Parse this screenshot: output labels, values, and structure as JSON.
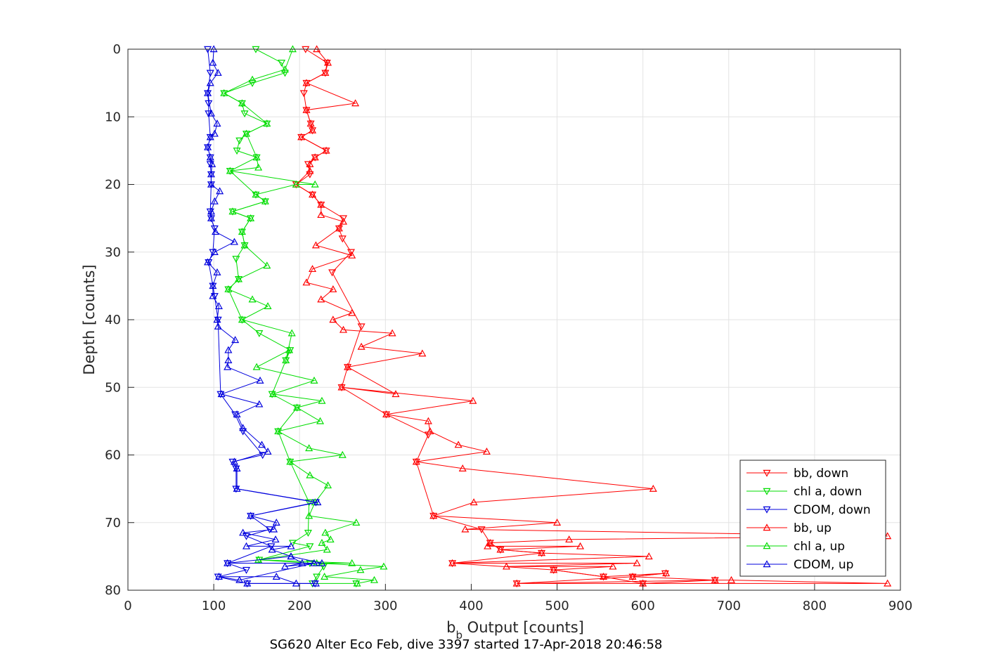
{
  "chart_data": {
    "type": "line",
    "title": "SG620 Alter Eco Feb, dive 3397 started 17-Apr-2018 20:46:58",
    "xlabel_main": "b",
    "xlabel_sub": "b",
    "xlabel_rest": " Output [counts]",
    "ylabel": "Depth [counts]",
    "xlim": [
      0,
      900
    ],
    "ylim": [
      0,
      80
    ],
    "y_reversed": true,
    "grid": true,
    "legend_position": "bottom-right",
    "xticks": [
      0,
      100,
      200,
      300,
      400,
      500,
      600,
      700,
      800,
      900
    ],
    "yticks": [
      0,
      10,
      20,
      30,
      40,
      50,
      60,
      70,
      80
    ],
    "series": [
      {
        "name": "bb, down",
        "color": "#ff0000",
        "marker": "triangle-down",
        "points": [
          [
            207,
            0
          ],
          [
            232,
            2
          ],
          [
            230,
            3.5
          ],
          [
            208,
            5
          ],
          [
            205,
            6.5
          ],
          [
            208,
            9
          ],
          [
            213,
            11
          ],
          [
            215,
            12
          ],
          [
            202,
            13
          ],
          [
            231,
            15
          ],
          [
            218,
            16
          ],
          [
            210,
            17
          ],
          [
            212,
            18.5
          ],
          [
            196,
            20
          ],
          [
            215,
            21.5
          ],
          [
            225,
            23
          ],
          [
            251,
            25
          ],
          [
            246,
            26.5
          ],
          [
            250,
            28
          ],
          [
            260,
            30
          ],
          [
            238,
            33
          ],
          [
            272,
            41
          ],
          [
            256,
            47
          ],
          [
            249,
            50
          ],
          [
            301,
            54
          ],
          [
            350,
            57
          ],
          [
            336,
            61
          ],
          [
            356,
            69
          ],
          [
            412,
            71
          ],
          [
            422,
            73
          ],
          [
            434,
            74
          ],
          [
            482,
            74.5
          ],
          [
            378,
            76
          ],
          [
            496,
            77
          ],
          [
            554,
            78
          ],
          [
            600,
            79
          ],
          [
            684,
            78.5
          ],
          [
            453,
            79
          ],
          [
            588,
            78
          ],
          [
            626,
            77.5
          ]
        ]
      },
      {
        "name": "chl a, down",
        "color": "#00dd00",
        "marker": "triangle-down",
        "points": [
          [
            149,
            0
          ],
          [
            179,
            2
          ],
          [
            183,
            3.5
          ],
          [
            145,
            5
          ],
          [
            112,
            6.5
          ],
          [
            133,
            8
          ],
          [
            136,
            9.5
          ],
          [
            162,
            11
          ],
          [
            138,
            12.5
          ],
          [
            130,
            13.5
          ],
          [
            127,
            15
          ],
          [
            150,
            16
          ],
          [
            119,
            18
          ],
          [
            149,
            21.5
          ],
          [
            160,
            22.5
          ],
          [
            122,
            24
          ],
          [
            143,
            25
          ],
          [
            133,
            27
          ],
          [
            136,
            29
          ],
          [
            126,
            31
          ],
          [
            129,
            34
          ],
          [
            117,
            35.5
          ],
          [
            133,
            40
          ],
          [
            153,
            42
          ],
          [
            189,
            44.5
          ],
          [
            184,
            46
          ],
          [
            168,
            51
          ],
          [
            197,
            53
          ],
          [
            175,
            56.5
          ],
          [
            189,
            61
          ],
          [
            211,
            67
          ],
          [
            210,
            71.5
          ],
          [
            192,
            73
          ],
          [
            212,
            73.5
          ],
          [
            153,
            75.5
          ],
          [
            212,
            76
          ],
          [
            228,
            76.5
          ],
          [
            220,
            78
          ],
          [
            215,
            79
          ],
          [
            266,
            79
          ]
        ]
      },
      {
        "name": "CDOM, down",
        "color": "#0000dd",
        "marker": "triangle-down",
        "points": [
          [
            93,
            0
          ],
          [
            96,
            3.5
          ],
          [
            93,
            6.5
          ],
          [
            94,
            8
          ],
          [
            94,
            9.5
          ],
          [
            96,
            13
          ],
          [
            93,
            14.5
          ],
          [
            96,
            16
          ],
          [
            96,
            17
          ],
          [
            97,
            18.5
          ],
          [
            97,
            20
          ],
          [
            96,
            24
          ],
          [
            97,
            25
          ],
          [
            101,
            26.5
          ],
          [
            99,
            30
          ],
          [
            94,
            31.5
          ],
          [
            99,
            35
          ],
          [
            101,
            36.5
          ],
          [
            105,
            40
          ],
          [
            108,
            51
          ],
          [
            125,
            54
          ],
          [
            134,
            56.5
          ],
          [
            157,
            60
          ],
          [
            122,
            61
          ],
          [
            126,
            62
          ],
          [
            126,
            65
          ],
          [
            219,
            67
          ],
          [
            143,
            69
          ],
          [
            165,
            71
          ],
          [
            138,
            72
          ],
          [
            167,
            73.5
          ],
          [
            116,
            76
          ],
          [
            138,
            77
          ],
          [
            105,
            78
          ],
          [
            139,
            79
          ],
          [
            218,
            79
          ]
        ]
      },
      {
        "name": "bb, up",
        "color": "#ff0000",
        "marker": "triangle-up",
        "points": [
          [
            220,
            0
          ],
          [
            233,
            2
          ],
          [
            230,
            3.5
          ],
          [
            208,
            5
          ],
          [
            265,
            8
          ],
          [
            208,
            9
          ],
          [
            213,
            11
          ],
          [
            215,
            12
          ],
          [
            202,
            13
          ],
          [
            231,
            15
          ],
          [
            218,
            16
          ],
          [
            212,
            17
          ],
          [
            212,
            18
          ],
          [
            196,
            20
          ],
          [
            215,
            21.5
          ],
          [
            225,
            23
          ],
          [
            225,
            24.5
          ],
          [
            251,
            25.5
          ],
          [
            246,
            26.5
          ],
          [
            219,
            29
          ],
          [
            261,
            30.5
          ],
          [
            215,
            32.5
          ],
          [
            208,
            34.5
          ],
          [
            239,
            35.5
          ],
          [
            225,
            37
          ],
          [
            261,
            39
          ],
          [
            239,
            40
          ],
          [
            251,
            41.5
          ],
          [
            308,
            42
          ],
          [
            272,
            44
          ],
          [
            343,
            45
          ],
          [
            256,
            47
          ],
          [
            312,
            51
          ],
          [
            249,
            50
          ],
          [
            402,
            52
          ],
          [
            301,
            54
          ],
          [
            350,
            55
          ],
          [
            352,
            56.5
          ],
          [
            385,
            58.5
          ],
          [
            418,
            59.5
          ],
          [
            336,
            61
          ],
          [
            390,
            62
          ],
          [
            612,
            65
          ],
          [
            403,
            67
          ],
          [
            356,
            69
          ],
          [
            500,
            70
          ],
          [
            393,
            71
          ],
          [
            885,
            72
          ],
          [
            514,
            72.5
          ],
          [
            422,
            73
          ],
          [
            419,
            73.5
          ],
          [
            527,
            73.5
          ],
          [
            434,
            74
          ],
          [
            482,
            74.5
          ],
          [
            607,
            75
          ],
          [
            378,
            76
          ],
          [
            593,
            76
          ],
          [
            441,
            76.5
          ],
          [
            565,
            76.5
          ],
          [
            496,
            77
          ],
          [
            554,
            78
          ],
          [
            627,
            77.5
          ],
          [
            588,
            78
          ],
          [
            684,
            78.5
          ],
          [
            703,
            78.5
          ],
          [
            885,
            79
          ],
          [
            600,
            79
          ],
          [
            453,
            79
          ]
        ]
      },
      {
        "name": "chl a, up",
        "color": "#00dd00",
        "marker": "triangle-up",
        "points": [
          [
            192,
            0
          ],
          [
            183,
            3
          ],
          [
            145,
            4.5
          ],
          [
            112,
            6.5
          ],
          [
            133,
            8
          ],
          [
            162,
            11
          ],
          [
            138,
            12.5
          ],
          [
            150,
            16
          ],
          [
            152,
            17.5
          ],
          [
            119,
            18
          ],
          [
            218,
            20
          ],
          [
            196,
            20
          ],
          [
            149,
            21.5
          ],
          [
            160,
            22.5
          ],
          [
            122,
            24
          ],
          [
            143,
            25
          ],
          [
            133,
            27
          ],
          [
            136,
            29
          ],
          [
            162,
            32
          ],
          [
            129,
            34
          ],
          [
            117,
            35.5
          ],
          [
            145,
            37
          ],
          [
            163,
            38
          ],
          [
            133,
            40
          ],
          [
            191,
            42
          ],
          [
            184,
            46
          ],
          [
            188,
            44.5
          ],
          [
            150,
            47
          ],
          [
            217,
            49
          ],
          [
            169,
            51
          ],
          [
            226,
            52
          ],
          [
            197,
            53
          ],
          [
            224,
            55
          ],
          [
            175,
            56.5
          ],
          [
            211,
            59
          ],
          [
            250,
            60
          ],
          [
            189,
            61
          ],
          [
            212,
            63
          ],
          [
            233,
            64.5
          ],
          [
            218,
            67
          ],
          [
            211,
            69
          ],
          [
            266,
            70
          ],
          [
            230,
            71.5
          ],
          [
            236,
            72.5
          ],
          [
            226,
            73
          ],
          [
            232,
            74
          ],
          [
            152,
            75.5
          ],
          [
            261,
            76
          ],
          [
            220,
            76
          ],
          [
            298,
            76.5
          ],
          [
            271,
            77
          ],
          [
            229,
            78
          ],
          [
            287,
            78.5
          ],
          [
            267,
            79
          ]
        ]
      },
      {
        "name": "CDOM, up",
        "color": "#0000dd",
        "marker": "triangle-up",
        "points": [
          [
            100,
            0
          ],
          [
            99,
            2
          ],
          [
            105,
            3.5
          ],
          [
            96,
            5
          ],
          [
            93,
            6.5
          ],
          [
            97,
            9.5
          ],
          [
            104,
            11
          ],
          [
            101,
            12.5
          ],
          [
            96,
            13
          ],
          [
            93,
            14.5
          ],
          [
            96,
            16
          ],
          [
            98,
            17
          ],
          [
            97,
            18.5
          ],
          [
            97,
            20
          ],
          [
            107,
            21
          ],
          [
            101,
            22.5
          ],
          [
            97,
            24
          ],
          [
            97,
            25
          ],
          [
            102,
            27
          ],
          [
            124,
            28.5
          ],
          [
            101,
            30
          ],
          [
            93,
            31.5
          ],
          [
            104,
            33
          ],
          [
            99,
            35
          ],
          [
            99,
            36.5
          ],
          [
            106,
            38
          ],
          [
            104,
            40
          ],
          [
            105,
            41
          ],
          [
            125,
            43
          ],
          [
            117,
            44.5
          ],
          [
            117,
            46
          ],
          [
            116,
            47
          ],
          [
            154,
            49
          ],
          [
            109,
            51
          ],
          [
            153,
            52.5
          ],
          [
            127,
            54
          ],
          [
            134,
            56
          ],
          [
            156,
            58.5
          ],
          [
            163,
            59.5
          ],
          [
            124,
            61
          ],
          [
            127,
            62
          ],
          [
            127,
            65
          ],
          [
            221,
            67
          ],
          [
            143,
            69
          ],
          [
            173,
            70
          ],
          [
            170,
            71
          ],
          [
            134,
            71.5
          ],
          [
            172,
            72.5
          ],
          [
            138,
            73.5
          ],
          [
            190,
            73.5
          ],
          [
            168,
            74
          ],
          [
            190,
            75
          ],
          [
            116,
            76
          ],
          [
            226,
            76
          ],
          [
            190,
            75
          ],
          [
            203,
            76
          ],
          [
            183,
            76.5
          ],
          [
            217,
            76
          ],
          [
            130,
            78.5
          ],
          [
            106,
            78
          ],
          [
            173,
            78
          ],
          [
            196,
            79
          ],
          [
            139,
            79
          ],
          [
            219,
            79
          ]
        ]
      }
    ]
  }
}
